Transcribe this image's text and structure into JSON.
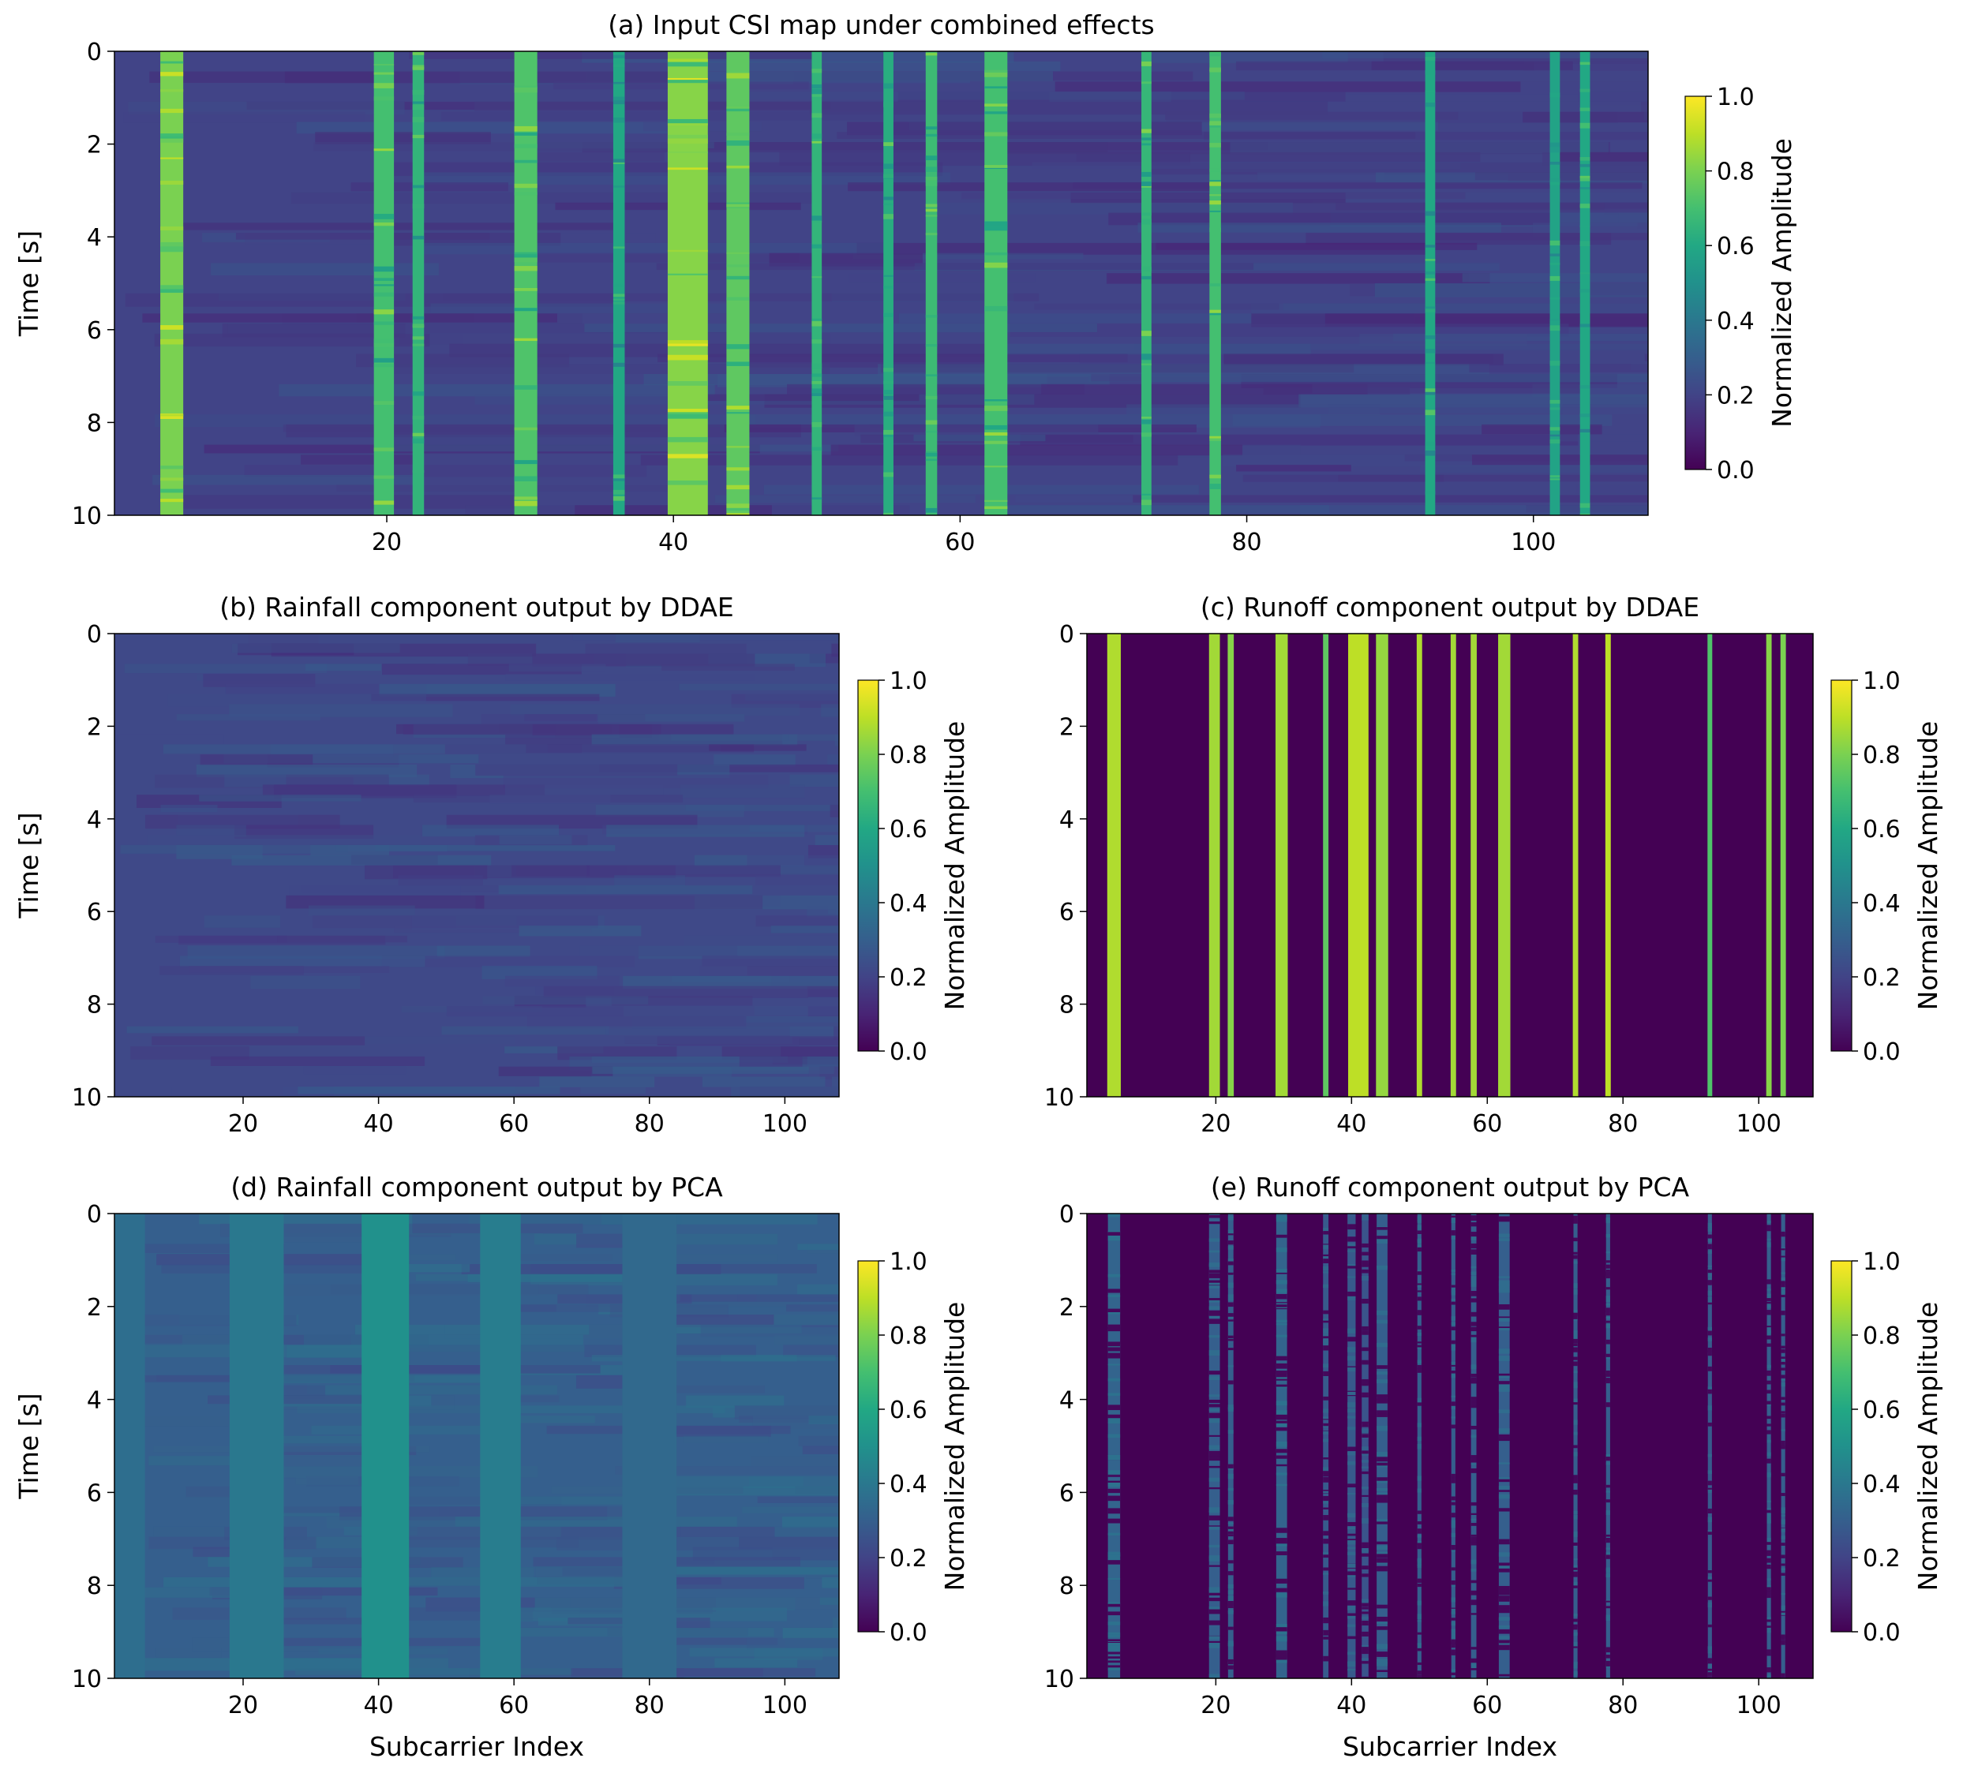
{
  "chart_data": [
    {
      "id": "a",
      "type": "heatmap",
      "title": "(a) Input CSI map under combined effects",
      "xlabel": "",
      "ylabel": "Time [s]",
      "xlim": [
        1,
        108
      ],
      "ylim": [
        0,
        10
      ],
      "x_ticks": [
        20,
        40,
        60,
        80,
        100
      ],
      "y_ticks": [
        0,
        2,
        4,
        6,
        8,
        10
      ],
      "colormap": "viridis",
      "colorbar": {
        "label": "Normalized Amplitude",
        "range": [
          0.0,
          1.0
        ],
        "ticks": [
          "0.0",
          "0.2",
          "0.4",
          "0.6",
          "0.8",
          "1.0"
        ]
      },
      "background_level": 0.2,
      "bands": [
        {
          "x": 5,
          "width": 1.6,
          "level": 0.8
        },
        {
          "x": 19.8,
          "width": 1.4,
          "level": 0.7
        },
        {
          "x": 22.2,
          "width": 0.8,
          "level": 0.65
        },
        {
          "x": 29.7,
          "width": 1.6,
          "level": 0.72
        },
        {
          "x": 36.2,
          "width": 0.8,
          "level": 0.6
        },
        {
          "x": 41,
          "width": 2.8,
          "level": 0.82
        },
        {
          "x": 44.5,
          "width": 1.6,
          "level": 0.75
        },
        {
          "x": 50,
          "width": 0.7,
          "level": 0.65
        },
        {
          "x": 55,
          "width": 0.7,
          "level": 0.62
        },
        {
          "x": 58,
          "width": 0.8,
          "level": 0.68
        },
        {
          "x": 62.5,
          "width": 1.6,
          "level": 0.7
        },
        {
          "x": 73,
          "width": 0.7,
          "level": 0.66
        },
        {
          "x": 77.8,
          "width": 0.8,
          "level": 0.7
        },
        {
          "x": 92.8,
          "width": 0.7,
          "level": 0.6
        },
        {
          "x": 101.5,
          "width": 0.7,
          "level": 0.58
        },
        {
          "x": 103.6,
          "width": 0.7,
          "level": 0.6
        }
      ]
    },
    {
      "id": "b",
      "type": "heatmap",
      "title": "(b) Rainfall component output by DDAE",
      "xlabel": "",
      "ylabel": "Time [s]",
      "xlim": [
        1,
        108
      ],
      "ylim": [
        0,
        10
      ],
      "x_ticks": [
        20,
        40,
        60,
        80,
        100
      ],
      "y_ticks": [
        0,
        2,
        4,
        6,
        8,
        10
      ],
      "colormap": "viridis",
      "colorbar": {
        "label": "Normalized Amplitude",
        "range": [
          0.0,
          1.0
        ],
        "ticks": [
          "0.0",
          "0.2",
          "0.4",
          "0.6",
          "0.8",
          "1.0"
        ]
      },
      "background_level": 0.22,
      "bands": []
    },
    {
      "id": "c",
      "type": "heatmap",
      "title": "(c) Runoff component output by DDAE",
      "xlabel": "",
      "ylabel": "",
      "xlim": [
        1,
        108
      ],
      "ylim": [
        0,
        10
      ],
      "x_ticks": [
        20,
        40,
        60,
        80,
        100
      ],
      "y_ticks": [
        0,
        2,
        4,
        6,
        8,
        10
      ],
      "colormap": "viridis",
      "colorbar": {
        "label": "Normalized Amplitude",
        "range": [
          0.0,
          1.0
        ],
        "ticks": [
          "0.0",
          "0.2",
          "0.4",
          "0.6",
          "0.8",
          "1.0"
        ]
      },
      "background_level": 0.0,
      "bands": [
        {
          "x": 5,
          "width": 2.0,
          "level": 0.88
        },
        {
          "x": 19.8,
          "width": 1.6,
          "level": 0.86
        },
        {
          "x": 22.2,
          "width": 0.9,
          "level": 0.82
        },
        {
          "x": 29.7,
          "width": 1.8,
          "level": 0.86
        },
        {
          "x": 36.2,
          "width": 0.8,
          "level": 0.75
        },
        {
          "x": 41,
          "width": 3.0,
          "level": 0.9
        },
        {
          "x": 44.5,
          "width": 1.8,
          "level": 0.84
        },
        {
          "x": 50,
          "width": 0.8,
          "level": 0.88
        },
        {
          "x": 55,
          "width": 0.8,
          "level": 0.86
        },
        {
          "x": 58,
          "width": 0.9,
          "level": 0.86
        },
        {
          "x": 62.5,
          "width": 1.8,
          "level": 0.86
        },
        {
          "x": 73,
          "width": 0.8,
          "level": 0.88
        },
        {
          "x": 77.8,
          "width": 0.8,
          "level": 0.9
        },
        {
          "x": 92.8,
          "width": 0.7,
          "level": 0.72
        },
        {
          "x": 101.5,
          "width": 0.8,
          "level": 0.82
        },
        {
          "x": 103.6,
          "width": 0.8,
          "level": 0.8
        }
      ]
    },
    {
      "id": "d",
      "type": "heatmap",
      "title": "(d) Rainfall component output by PCA",
      "xlabel": "Subcarrier Index",
      "ylabel": "Time [s]",
      "xlim": [
        1,
        108
      ],
      "ylim": [
        0,
        10
      ],
      "x_ticks": [
        20,
        40,
        60,
        80,
        100
      ],
      "y_ticks": [
        0,
        2,
        4,
        6,
        8,
        10
      ],
      "colormap": "viridis",
      "colorbar": {
        "label": "Normalized Amplitude",
        "range": [
          0.0,
          1.0
        ],
        "ticks": [
          "0.0",
          "0.2",
          "0.4",
          "0.6",
          "0.8",
          "1.0"
        ]
      },
      "background_level": 0.3,
      "bands": [
        {
          "x": 3,
          "width": 5,
          "level": 0.36
        },
        {
          "x": 22,
          "width": 8,
          "level": 0.4
        },
        {
          "x": 41,
          "width": 7,
          "level": 0.5
        },
        {
          "x": 58,
          "width": 6,
          "level": 0.42
        },
        {
          "x": 80,
          "width": 8,
          "level": 0.34
        }
      ]
    },
    {
      "id": "e",
      "type": "heatmap",
      "title": "(e) Runoff component output by PCA",
      "xlabel": "Subcarrier Index",
      "ylabel": "",
      "xlim": [
        1,
        108
      ],
      "ylim": [
        0,
        10
      ],
      "x_ticks": [
        20,
        40,
        60,
        80,
        100
      ],
      "y_ticks": [
        0,
        2,
        4,
        6,
        8,
        10
      ],
      "colormap": "viridis",
      "colorbar": {
        "label": "Normalized Amplitude",
        "range": [
          0.0,
          1.0
        ],
        "ticks": [
          "0.0",
          "0.2",
          "0.4",
          "0.6",
          "0.8",
          "1.0"
        ]
      },
      "background_level": 0.0,
      "bands": [
        {
          "x": 5,
          "width": 1.8,
          "level": 0.32
        },
        {
          "x": 19.8,
          "width": 1.6,
          "level": 0.3
        },
        {
          "x": 22.2,
          "width": 0.8,
          "level": 0.3
        },
        {
          "x": 29.7,
          "width": 1.6,
          "level": 0.32
        },
        {
          "x": 36.2,
          "width": 0.8,
          "level": 0.28
        },
        {
          "x": 40,
          "width": 1.2,
          "level": 0.28
        },
        {
          "x": 42,
          "width": 1.0,
          "level": 0.26
        },
        {
          "x": 44.5,
          "width": 1.6,
          "level": 0.3
        },
        {
          "x": 50,
          "width": 0.6,
          "level": 0.3
        },
        {
          "x": 55,
          "width": 0.6,
          "level": 0.3
        },
        {
          "x": 58,
          "width": 0.8,
          "level": 0.3
        },
        {
          "x": 62.5,
          "width": 1.6,
          "level": 0.3
        },
        {
          "x": 73,
          "width": 0.6,
          "level": 0.3
        },
        {
          "x": 77.8,
          "width": 0.6,
          "level": 0.3
        },
        {
          "x": 92.8,
          "width": 0.6,
          "level": 0.28
        },
        {
          "x": 101.5,
          "width": 0.6,
          "level": 0.3
        },
        {
          "x": 103.6,
          "width": 0.6,
          "level": 0.3
        }
      ]
    }
  ]
}
